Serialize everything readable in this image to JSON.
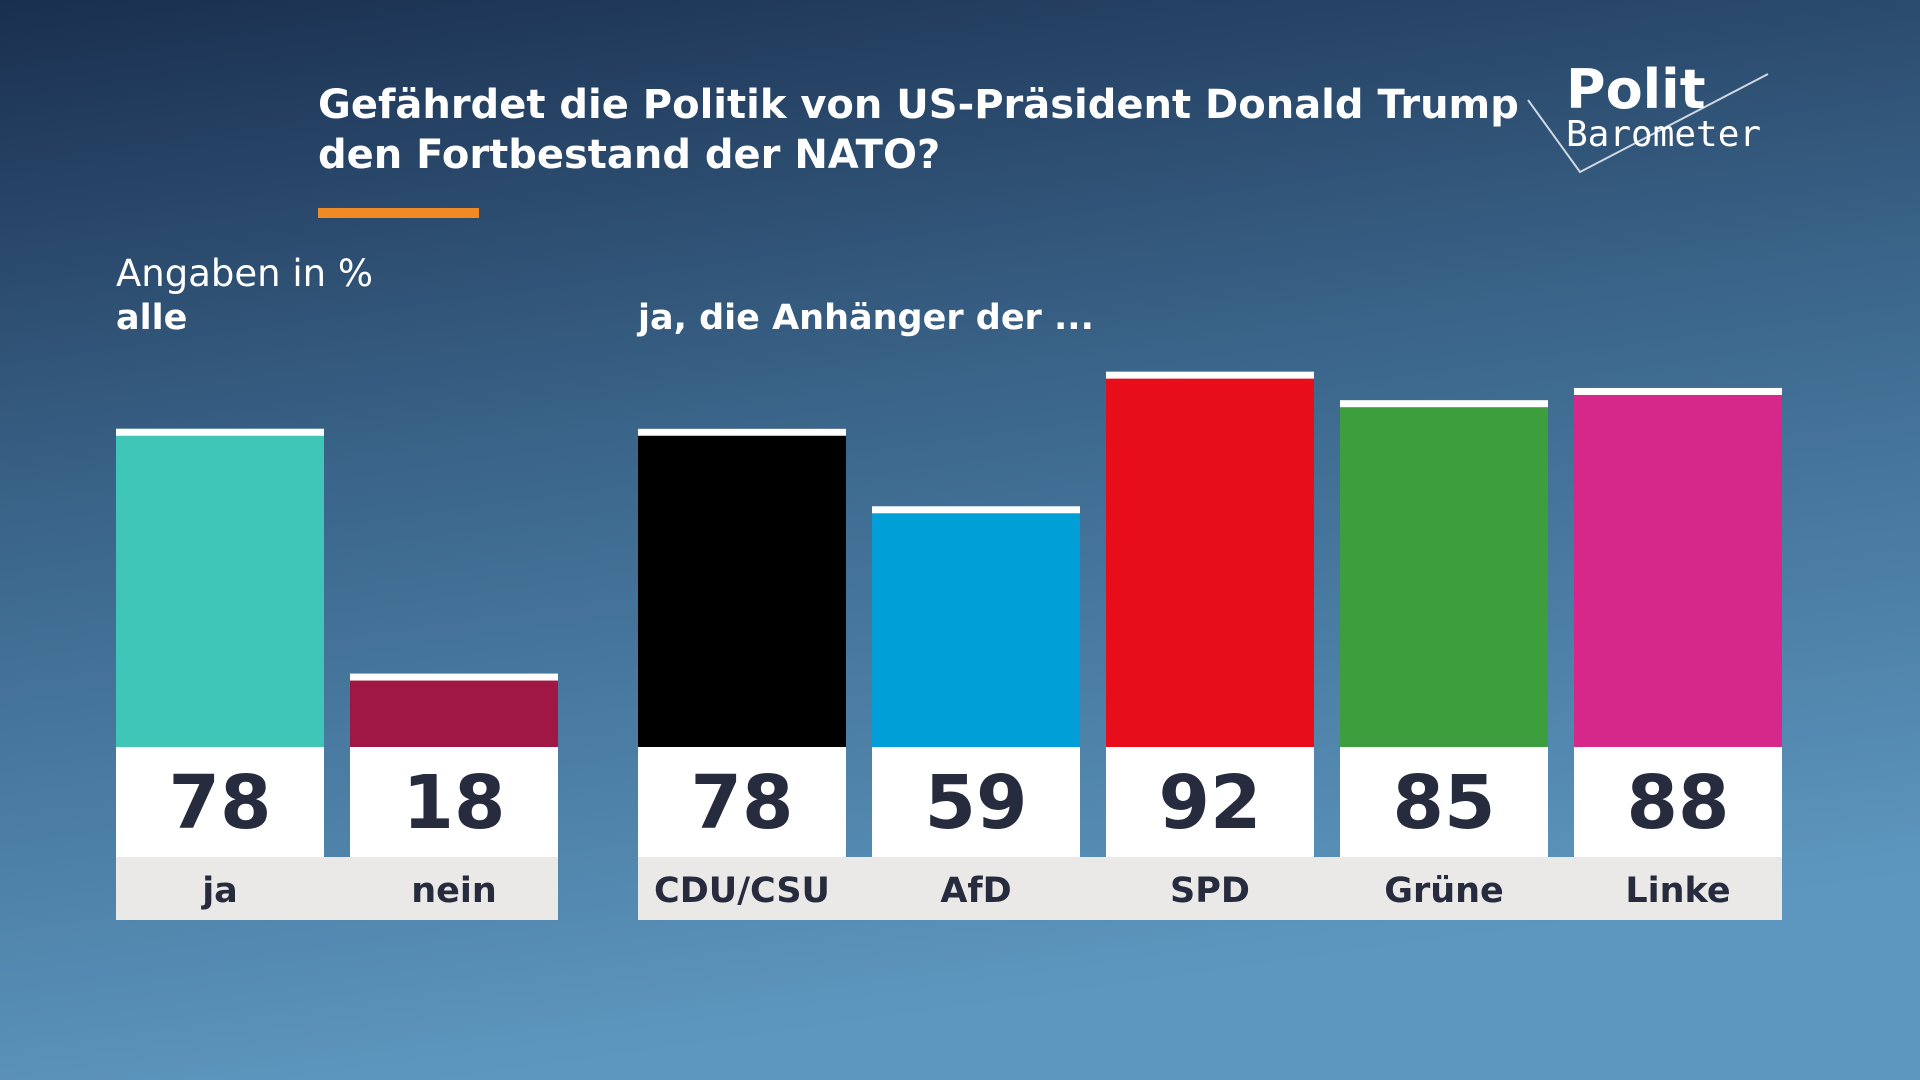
{
  "title": [
    "Gefährdet die Politik von US-Präsident Donald Trump",
    "den Fortbestand der NATO?"
  ],
  "note": "Angaben in %",
  "logo": {
    "line1": "Polit",
    "line2": "Barometer"
  },
  "chart_data": [
    {
      "type": "bar",
      "subtitle": "alle",
      "categories": [
        "ja",
        "nein"
      ],
      "values": [
        78,
        18
      ],
      "colors": [
        "#3fc6b8",
        "#a01645"
      ]
    },
    {
      "type": "bar",
      "subtitle": "ja, die Anhänger der ...",
      "categories": [
        "CDU/CSU",
        "AfD",
        "SPD",
        "Grüne",
        "Linke"
      ],
      "values": [
        78,
        59,
        92,
        85,
        88
      ],
      "colors": [
        "#000000",
        "#009fd7",
        "#e80d1a",
        "#3d9e3d",
        "#d6288a"
      ]
    }
  ]
}
